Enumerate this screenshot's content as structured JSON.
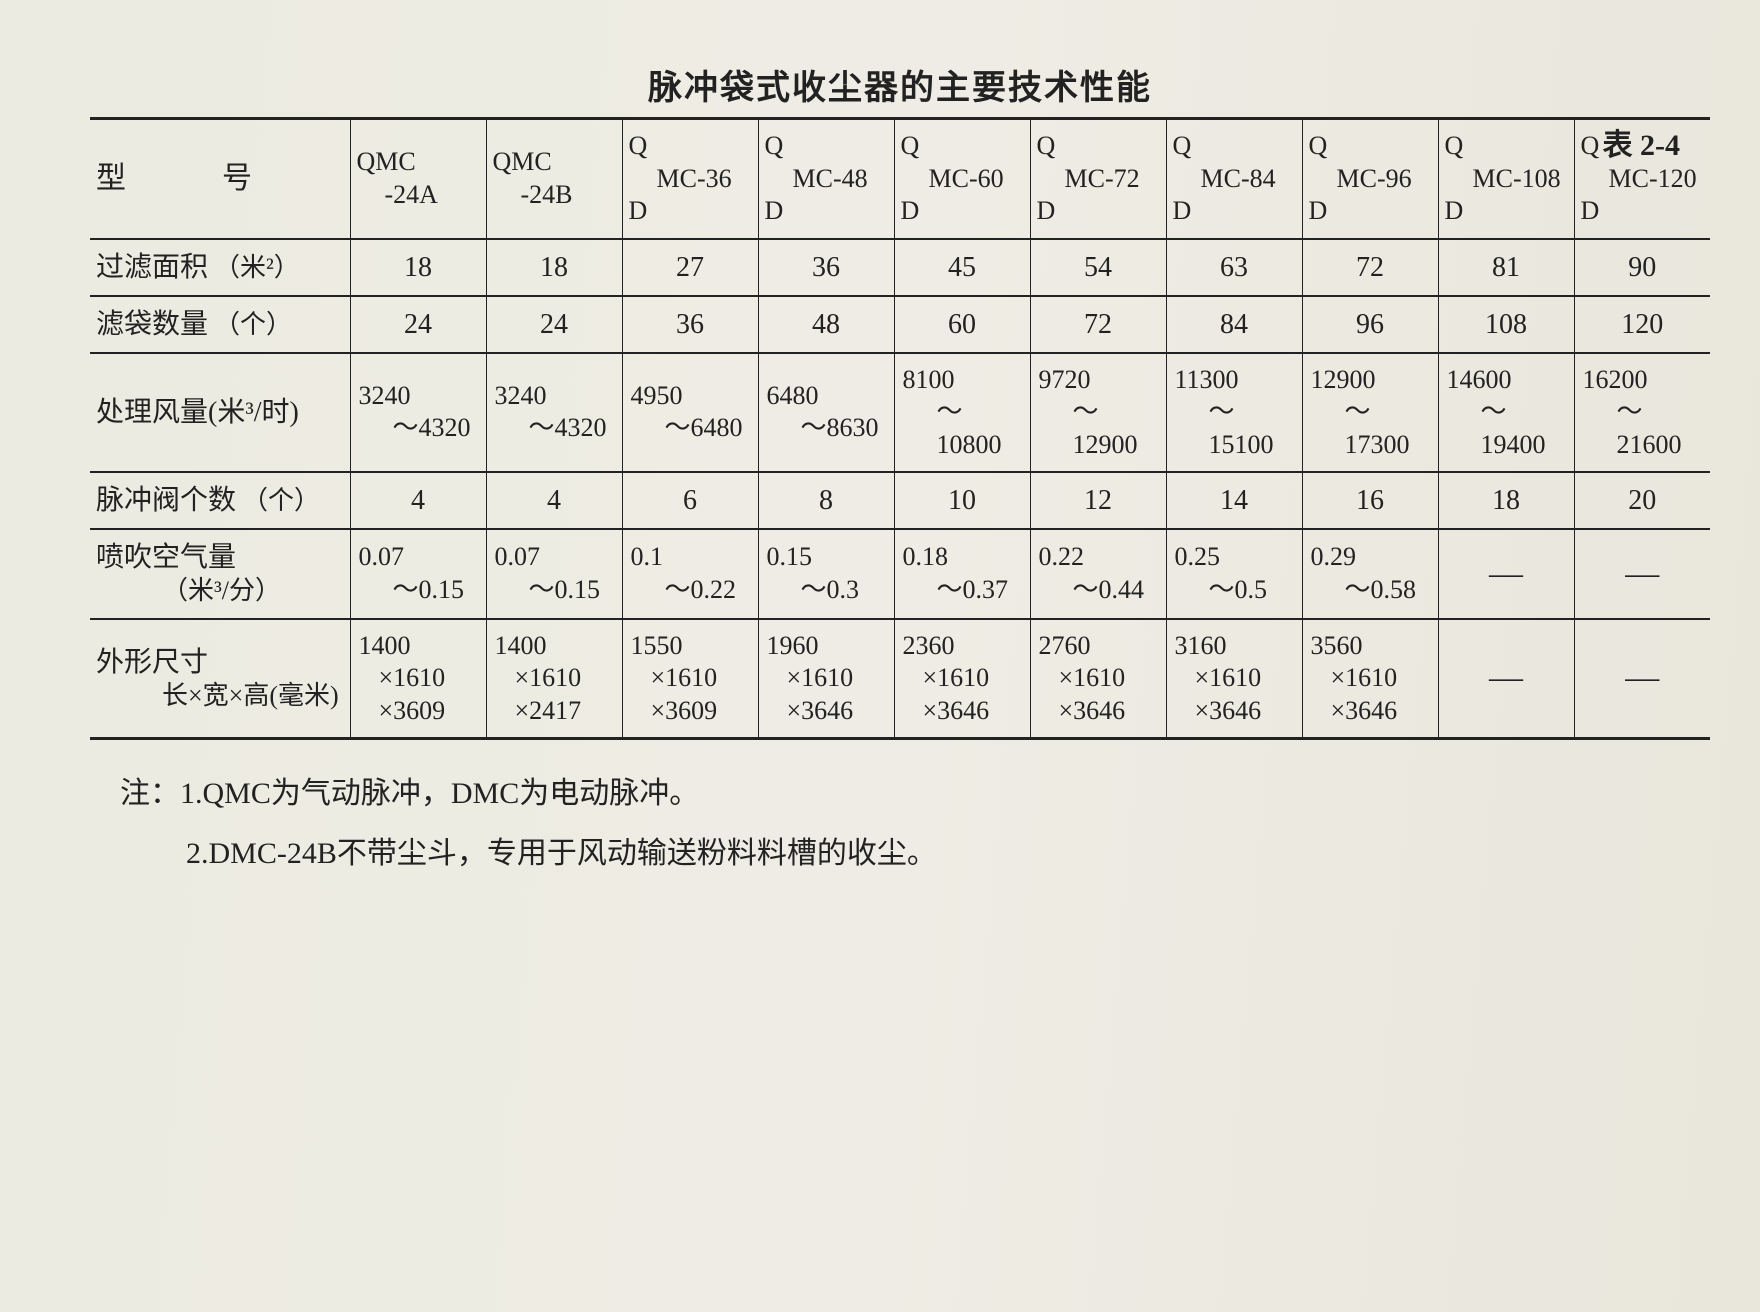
{
  "title": "脉冲袋式收尘器的主要技术性能",
  "table_number": "表 2-4",
  "row_header_label": "型　　号",
  "columns": [
    {
      "top": "QMC",
      "mid": "-24A",
      "bot": ""
    },
    {
      "top": "QMC",
      "mid": "-24B",
      "bot": ""
    },
    {
      "top": "Q",
      "mid": "MC-36",
      "bot": "D"
    },
    {
      "top": "Q",
      "mid": "MC-48",
      "bot": "D"
    },
    {
      "top": "Q",
      "mid": "MC-60",
      "bot": "D"
    },
    {
      "top": "Q",
      "mid": "MC-72",
      "bot": "D"
    },
    {
      "top": "Q",
      "mid": "MC-84",
      "bot": "D"
    },
    {
      "top": "Q",
      "mid": "MC-96",
      "bot": "D"
    },
    {
      "top": "Q",
      "mid": "MC-108",
      "bot": "D"
    },
    {
      "top": "Q",
      "mid": "MC-120",
      "bot": "D"
    }
  ],
  "rows": [
    {
      "label": "过滤面积",
      "unit": "（米²）",
      "type": "single",
      "values": [
        "18",
        "18",
        "27",
        "36",
        "45",
        "54",
        "63",
        "72",
        "81",
        "90"
      ]
    },
    {
      "label": "滤袋数量",
      "unit": "（个）",
      "type": "single",
      "values": [
        "24",
        "24",
        "36",
        "48",
        "60",
        "72",
        "84",
        "96",
        "108",
        "120"
      ]
    },
    {
      "label": "处理风量(米³/时)",
      "unit": "",
      "type": "range",
      "values": [
        [
          "3240",
          "～4320"
        ],
        [
          "3240",
          "～4320"
        ],
        [
          "4950",
          "～6480"
        ],
        [
          "6480",
          "～8630"
        ],
        [
          "8100",
          "～10800"
        ],
        [
          "9720",
          "～12900"
        ],
        [
          "11300",
          "～15100"
        ],
        [
          "12900",
          "～17300"
        ],
        [
          "14600",
          "～19400"
        ],
        [
          "16200",
          "～21600"
        ]
      ]
    },
    {
      "label": "脉冲阀个数",
      "unit": "（个）",
      "type": "single",
      "values": [
        "4",
        "4",
        "6",
        "8",
        "10",
        "12",
        "14",
        "16",
        "18",
        "20"
      ]
    },
    {
      "label": "喷吹空气量",
      "unit": "（米³/分）",
      "type": "range",
      "label_two_line": true,
      "values": [
        [
          "0.07",
          "～0.15"
        ],
        [
          "0.07",
          "～0.15"
        ],
        [
          "0.1",
          "～0.22"
        ],
        [
          "0.15",
          "～0.3"
        ],
        [
          "0.18",
          "～0.37"
        ],
        [
          "0.22",
          "～0.44"
        ],
        [
          "0.25",
          "～0.5"
        ],
        [
          "0.29",
          "～0.58"
        ],
        [
          "—",
          ""
        ],
        [
          "—",
          ""
        ]
      ]
    },
    {
      "label": "外形尺寸",
      "unit": "长×宽×高(毫米)",
      "type": "dim",
      "label_two_line": true,
      "values": [
        [
          "1400",
          "×1610",
          "×3609"
        ],
        [
          "1400",
          "×1610",
          "×2417"
        ],
        [
          "1550",
          "×1610",
          "×3609"
        ],
        [
          "1960",
          "×1610",
          "×3646"
        ],
        [
          "2360",
          "×1610",
          "×3646"
        ],
        [
          "2760",
          "×1610",
          "×3646"
        ],
        [
          "3160",
          "×1610",
          "×3646"
        ],
        [
          "3560",
          "×1610",
          "×3646"
        ],
        [
          "—",
          "",
          ""
        ],
        [
          "—",
          "",
          ""
        ]
      ]
    }
  ],
  "notes": [
    "注：1.QMC为气动脉冲，DMC为电动脉冲。",
    "2.DMC-24B不带尘斗，专用于风动输送粉料料槽的收尘。"
  ]
}
